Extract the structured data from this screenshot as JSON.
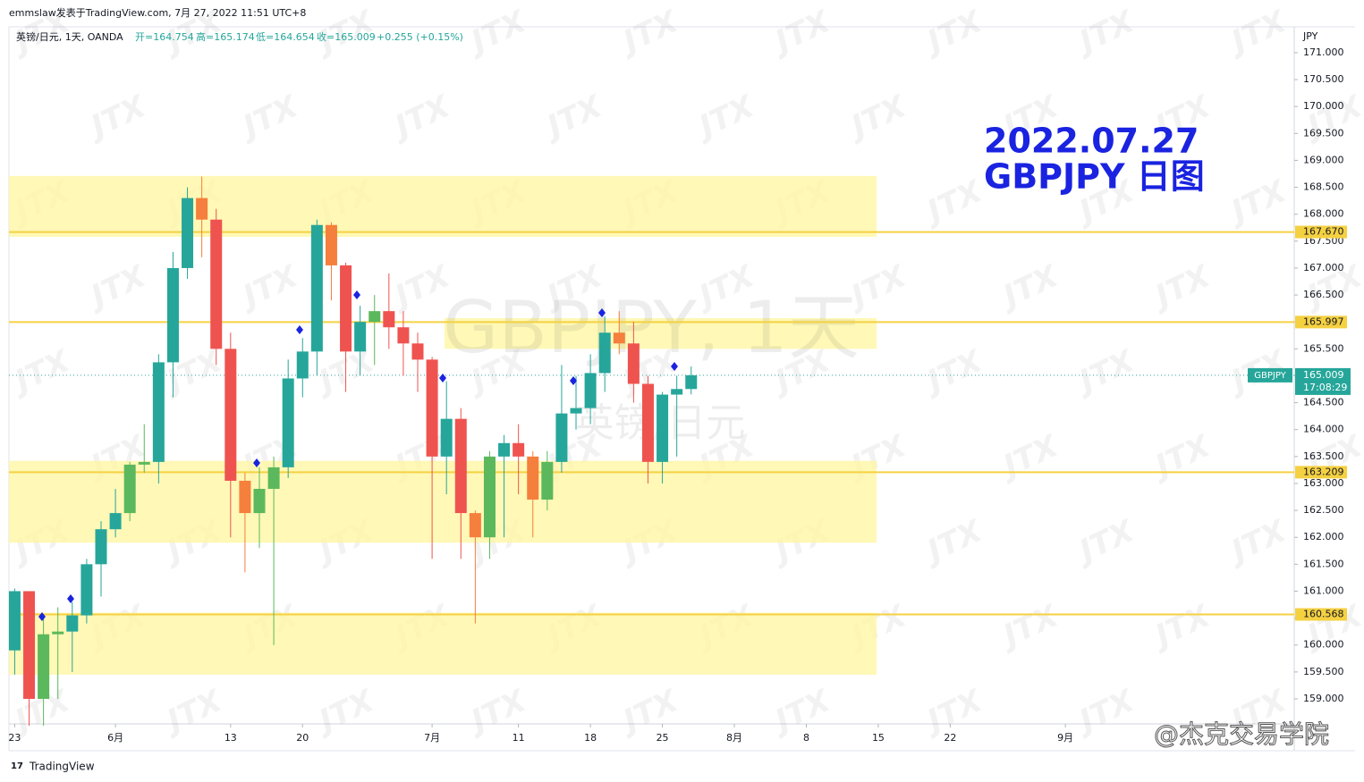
{
  "chart_data": {
    "type": "candlestick",
    "header": "emmslaw发表于TradingView.com, 7月 27, 2022 11:51 UTC+8",
    "symbol_line": "英镑/日元, 1天, OANDA",
    "ohlc_labels": [
      "开=164.754",
      "高=165.174",
      "低=164.654",
      "收=165.009"
    ],
    "change_label": "+0.255 (+0.15%)",
    "annotation": [
      "2022.07.27",
      "GBPJPY 日图"
    ],
    "watermark_symbol": "GBPJPY, 1天",
    "watermark_name": "英镑/日元",
    "watermark_text": "JTX",
    "currency": "JPY",
    "brand": "TradingView",
    "credit": "@杰克交易学院",
    "ylim": [
      158.535,
      171.48
    ],
    "xlim": [
      -0.4,
      88.9
    ],
    "yticks": [
      {
        "value": 159,
        "label": "159.000"
      },
      {
        "value": 159.5,
        "label": "159.500"
      },
      {
        "value": 160,
        "label": "160.000"
      },
      {
        "value": 160.5,
        "label": "160.500"
      },
      {
        "value": 161,
        "label": "161.000"
      },
      {
        "value": 161.5,
        "label": "161.500"
      },
      {
        "value": 162,
        "label": "162.000"
      },
      {
        "value": 162.5,
        "label": "162.500"
      },
      {
        "value": 163,
        "label": "163.000"
      },
      {
        "value": 163.5,
        "label": "163.500"
      },
      {
        "value": 164,
        "label": "164.000"
      },
      {
        "value": 164.5,
        "label": "164.500"
      },
      {
        "value": 165,
        "label": "165.000"
      },
      {
        "value": 165.5,
        "label": "165.500"
      },
      {
        "value": 166,
        "label": "166.000"
      },
      {
        "value": 166.5,
        "label": "166.500"
      },
      {
        "value": 167,
        "label": "167.000"
      },
      {
        "value": 167.5,
        "label": "167.500"
      },
      {
        "value": 168,
        "label": "168.000"
      },
      {
        "value": 168.5,
        "label": "168.500"
      },
      {
        "value": 169,
        "label": "169.000"
      },
      {
        "value": 169.5,
        "label": "169.500"
      },
      {
        "value": 170,
        "label": "170.000"
      },
      {
        "value": 170.5,
        "label": "170.500"
      },
      {
        "value": 171,
        "label": "171.000"
      }
    ],
    "xticks": [
      {
        "value": 0,
        "label": "23"
      },
      {
        "value": 7,
        "label": "6月"
      },
      {
        "value": 15,
        "label": "13"
      },
      {
        "value": 20,
        "label": "20"
      },
      {
        "value": 29,
        "label": "7月"
      },
      {
        "value": 35,
        "label": "11"
      },
      {
        "value": 40,
        "label": "18"
      },
      {
        "value": 45,
        "label": "25"
      },
      {
        "value": 50,
        "label": "8月"
      },
      {
        "value": 55,
        "label": "8"
      },
      {
        "value": 60,
        "label": "15"
      },
      {
        "value": 65,
        "label": "22"
      },
      {
        "value": 73,
        "label": "9月"
      }
    ],
    "open": [
      159.9,
      161.0,
      159.0,
      160.2,
      160.25,
      160.55,
      161.5,
      162.15,
      162.45,
      163.35,
      163.4,
      165.25,
      167.0,
      168.3,
      167.9,
      165.5,
      163.05,
      162.45,
      162.9,
      163.3,
      164.95,
      165.45,
      167.8,
      167.05,
      165.45,
      166.0,
      166.2,
      165.9,
      165.6,
      165.3,
      163.5,
      164.2,
      162.45,
      162.0,
      163.5,
      163.75,
      163.5,
      162.7,
      163.4,
      164.3,
      164.4,
      165.05,
      165.8,
      165.6,
      164.85,
      163.4,
      164.65,
      164.754
    ],
    "high": [
      161.05,
      161.0,
      160.5,
      160.7,
      160.8,
      161.6,
      162.3,
      162.9,
      163.4,
      164.1,
      165.4,
      167.3,
      168.5,
      168.7,
      168.1,
      165.8,
      163.2,
      163.3,
      163.5,
      165.3,
      165.7,
      167.9,
      167.85,
      167.1,
      166.3,
      166.5,
      166.9,
      166.2,
      165.8,
      165.35,
      164.9,
      164.4,
      162.5,
      163.6,
      163.9,
      164.1,
      163.6,
      163.6,
      165.2,
      165.0,
      165.4,
      166.1,
      166.2,
      166.0,
      165.0,
      164.7,
      165.0,
      165.174
    ],
    "low": [
      159.45,
      158.5,
      158.5,
      159.0,
      159.5,
      160.4,
      160.9,
      162.0,
      162.3,
      163.2,
      163.0,
      164.6,
      166.8,
      167.2,
      165.2,
      162.0,
      161.35,
      161.8,
      160.0,
      163.1,
      164.6,
      165.0,
      166.4,
      164.7,
      165.0,
      165.2,
      165.5,
      165.0,
      164.7,
      161.6,
      162.8,
      161.6,
      160.4,
      161.6,
      162.0,
      162.8,
      162.0,
      162.5,
      163.2,
      164.0,
      164.1,
      164.7,
      165.4,
      164.5,
      163.0,
      163.0,
      163.5,
      164.654
    ],
    "close": [
      161.0,
      159.0,
      160.2,
      160.25,
      160.55,
      161.5,
      162.15,
      162.45,
      163.35,
      163.4,
      165.25,
      167.0,
      168.3,
      167.9,
      165.5,
      163.05,
      162.45,
      162.9,
      163.3,
      164.95,
      165.45,
      167.8,
      167.05,
      165.45,
      166.0,
      166.2,
      165.9,
      165.6,
      165.3,
      163.5,
      164.2,
      162.45,
      162.0,
      163.5,
      163.75,
      163.5,
      162.7,
      163.4,
      164.3,
      164.4,
      165.05,
      165.8,
      165.6,
      164.85,
      163.4,
      164.65,
      164.754,
      165.009
    ],
    "colors": [
      "#26a69a",
      "#ef5350",
      "#5cb85c",
      "#5cb85c",
      "#26a69a",
      "#26a69a",
      "#26a69a",
      "#26a69a",
      "#5cb85c",
      "#5cb85c",
      "#26a69a",
      "#26a69a",
      "#26a69a",
      "#f57f3c",
      "#ef5350",
      "#ef5350",
      "#f57f3c",
      "#5cb85c",
      "#5cb85c",
      "#26a69a",
      "#26a69a",
      "#26a69a",
      "#f57f3c",
      "#ef5350",
      "#26a69a",
      "#5cb85c",
      "#ef5350",
      "#ef5350",
      "#ef5350",
      "#ef5350",
      "#26a69a",
      "#ef5350",
      "#f57f3c",
      "#5cb85c",
      "#26a69a",
      "#ef5350",
      "#f57f3c",
      "#5cb85c",
      "#26a69a",
      "#26a69a",
      "#26a69a",
      "#26a69a",
      "#f57f3c",
      "#ef5350",
      "#ef5350",
      "#26a69a",
      "#26a69a",
      "#26a69a"
    ],
    "zones": [
      [
        167.58,
        168.71
      ],
      [
        165.5,
        166.07
      ],
      [
        161.9,
        163.42
      ],
      [
        159.45,
        160.6
      ]
    ],
    "zone_color": "#fff59d",
    "levels": [
      {
        "value": 167.67,
        "label": "167.670"
      },
      {
        "value": 165.997,
        "label": "165.997"
      },
      {
        "value": 163.209,
        "label": "163.209"
      },
      {
        "value": 160.568,
        "label": "160.568"
      }
    ],
    "level_color": "#f5d142",
    "last_price": {
      "value": 165.009,
      "label": "165.009",
      "symbol": "GBPJPY",
      "countdown": "17:08:29",
      "color": "#26a69a"
    }
  }
}
